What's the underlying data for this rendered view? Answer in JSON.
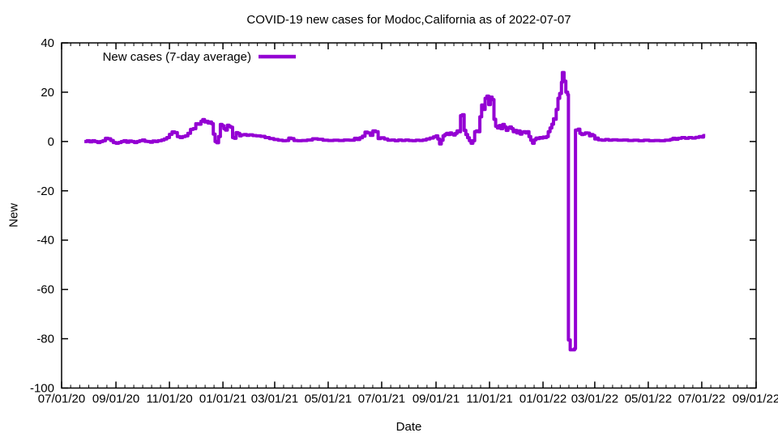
{
  "chart": {
    "title": "COVID-19 new cases for Modoc,California as of 2022-07-07",
    "x_axis_label": "Date",
    "y_axis_label": "New",
    "legend_label": "New cases (7-day average)"
  },
  "colors": {
    "line": "#9400d3",
    "text": "#000000",
    "border": "#000000",
    "background": "#ffffff"
  },
  "chart_data": {
    "type": "line",
    "line_style": "steps-post",
    "title": "COVID-19 new cases for Modoc,California as of 2022-07-07",
    "xlabel": "Date",
    "ylabel": "New",
    "grid": false,
    "legend_position": "top-left-inside",
    "ylim": [
      -100,
      40
    ],
    "y_ticks": [
      40,
      20,
      0,
      -20,
      -40,
      -60,
      -80,
      -100
    ],
    "x_start_date": "2020-07-01",
    "xlim_days": [
      0,
      792
    ],
    "x_tick_days": [
      0,
      62,
      123,
      184,
      243,
      304,
      365,
      427,
      488,
      549,
      608,
      669,
      730,
      792
    ],
    "x_tick_labels": [
      "07/01/20",
      "09/01/20",
      "11/01/20",
      "01/01/21",
      "03/01/21",
      "05/01/21",
      "07/01/21",
      "09/01/21",
      "11/01/21",
      "01/01/22",
      "03/01/22",
      "05/01/22",
      "07/01/22",
      "09/01/22"
    ],
    "x_minor_divisions": 6,
    "series": [
      {
        "name": "New cases (7-day average)",
        "color": "#9400d3",
        "points": [
          [
            26,
            0
          ],
          [
            29,
            0.3
          ],
          [
            32,
            -0.1
          ],
          [
            35,
            0.3
          ],
          [
            38,
            0
          ],
          [
            41,
            -0.4
          ],
          [
            44,
            0
          ],
          [
            47,
            0.3
          ],
          [
            50,
            1.3
          ],
          [
            53,
            1.1
          ],
          [
            56,
            0.4
          ],
          [
            59,
            -0.4
          ],
          [
            62,
            -0.7
          ],
          [
            65,
            -0.4
          ],
          [
            68,
            0
          ],
          [
            71,
            0.3
          ],
          [
            74,
            -0.3
          ],
          [
            77,
            0.2
          ],
          [
            80,
            0
          ],
          [
            83,
            -0.4
          ],
          [
            86,
            0
          ],
          [
            89,
            0.3
          ],
          [
            92,
            0.6
          ],
          [
            95,
            0.1
          ],
          [
            98,
            0
          ],
          [
            101,
            -0.3
          ],
          [
            104,
            0.2
          ],
          [
            107,
            0
          ],
          [
            110,
            0.3
          ],
          [
            114,
            0.6
          ],
          [
            117,
            1
          ],
          [
            120,
            1.6
          ],
          [
            123,
            2.9
          ],
          [
            126,
            3.9
          ],
          [
            129,
            3.6
          ],
          [
            132,
            2
          ],
          [
            135,
            1.6
          ],
          [
            138,
            2
          ],
          [
            141,
            2.3
          ],
          [
            144,
            3.3
          ],
          [
            147,
            4.9
          ],
          [
            150,
            5.2
          ],
          [
            153,
            7.2
          ],
          [
            156,
            7
          ],
          [
            159,
            8.2
          ],
          [
            161,
            8.9
          ],
          [
            163,
            7.9
          ],
          [
            165,
            8.2
          ],
          [
            167,
            7.5
          ],
          [
            169,
            7.9
          ],
          [
            171,
            7.2
          ],
          [
            173,
            3
          ],
          [
            175,
            0
          ],
          [
            177,
            -0.5
          ],
          [
            179,
            2
          ],
          [
            181,
            6.9
          ],
          [
            183,
            6.4
          ],
          [
            185,
            5.2
          ],
          [
            187,
            4.6
          ],
          [
            189,
            6.6
          ],
          [
            191,
            6.1
          ],
          [
            193,
            5.8
          ],
          [
            195,
            1.6
          ],
          [
            197,
            1.3
          ],
          [
            199,
            3.6
          ],
          [
            201,
            3.3
          ],
          [
            203,
            2.3
          ],
          [
            205,
            2.7
          ],
          [
            208,
            2.8
          ],
          [
            211,
            2.5
          ],
          [
            214,
            2.7
          ],
          [
            218,
            2.4
          ],
          [
            222,
            2.3
          ],
          [
            227,
            2.1
          ],
          [
            232,
            1.6
          ],
          [
            237,
            1.2
          ],
          [
            242,
            0.8
          ],
          [
            247,
            0.5
          ],
          [
            252,
            0.3
          ],
          [
            256,
            0.4
          ],
          [
            259,
            1.4
          ],
          [
            262,
            1.2
          ],
          [
            265,
            0.4
          ],
          [
            269,
            0.3
          ],
          [
            274,
            0.4
          ],
          [
            280,
            0.6
          ],
          [
            286,
            1.1
          ],
          [
            292,
            0.9
          ],
          [
            298,
            0.5
          ],
          [
            304,
            0.4
          ],
          [
            310,
            0.5
          ],
          [
            316,
            0.4
          ],
          [
            322,
            0.6
          ],
          [
            328,
            0.5
          ],
          [
            334,
            1.3
          ],
          [
            337,
            0.8
          ],
          [
            340,
            1.5
          ],
          [
            343,
            2.2
          ],
          [
            346,
            3.8
          ],
          [
            349,
            3.5
          ],
          [
            352,
            2.5
          ],
          [
            355,
            4.3
          ],
          [
            358,
            4
          ],
          [
            361,
            1.2
          ],
          [
            364,
            1.5
          ],
          [
            368,
            1
          ],
          [
            372,
            0.5
          ],
          [
            376,
            0.6
          ],
          [
            380,
            0.3
          ],
          [
            384,
            0.6
          ],
          [
            388,
            0.4
          ],
          [
            392,
            0.6
          ],
          [
            396,
            0.4
          ],
          [
            400,
            0.3
          ],
          [
            404,
            0.5
          ],
          [
            408,
            0.4
          ],
          [
            412,
            0.6
          ],
          [
            416,
            1
          ],
          [
            420,
            1.4
          ],
          [
            424,
            1.9
          ],
          [
            427,
            2.3
          ],
          [
            429,
            1
          ],
          [
            431,
            -1
          ],
          [
            433,
            0.5
          ],
          [
            435,
            2.3
          ],
          [
            437,
            2.8
          ],
          [
            439,
            3.3
          ],
          [
            441,
            2.8
          ],
          [
            443,
            3.5
          ],
          [
            445,
            3
          ],
          [
            447,
            2.6
          ],
          [
            449,
            3.3
          ],
          [
            451,
            4.3
          ],
          [
            453,
            4
          ],
          [
            455,
            10.5
          ],
          [
            457,
            10.9
          ],
          [
            459,
            4.5
          ],
          [
            461,
            2.8
          ],
          [
            463,
            1.5
          ],
          [
            465,
            0.3
          ],
          [
            467,
            -0.7
          ],
          [
            469,
            0.3
          ],
          [
            471,
            4
          ],
          [
            473,
            4.3
          ],
          [
            475,
            4
          ],
          [
            477,
            10
          ],
          [
            479,
            14.8
          ],
          [
            481,
            13
          ],
          [
            483,
            17.5
          ],
          [
            485,
            18.4
          ],
          [
            487,
            15
          ],
          [
            489,
            18
          ],
          [
            491,
            17
          ],
          [
            493,
            9
          ],
          [
            495,
            6.2
          ],
          [
            497,
            5.5
          ],
          [
            499,
            6.5
          ],
          [
            501,
            5.2
          ],
          [
            503,
            6.9
          ],
          [
            505,
            5.9
          ],
          [
            507,
            4.5
          ],
          [
            509,
            5.5
          ],
          [
            511,
            5.9
          ],
          [
            513,
            5.2
          ],
          [
            515,
            4
          ],
          [
            517,
            4.5
          ],
          [
            519,
            3.5
          ],
          [
            521,
            4.3
          ],
          [
            523,
            3
          ],
          [
            525,
            3.8
          ],
          [
            527,
            4
          ],
          [
            529,
            3.5
          ],
          [
            531,
            4
          ],
          [
            533,
            2
          ],
          [
            535,
            0.5
          ],
          [
            537,
            -0.7
          ],
          [
            539,
            0.7
          ],
          [
            541,
            1.4
          ],
          [
            543,
            1.2
          ],
          [
            545,
            1.6
          ],
          [
            547,
            1.4
          ],
          [
            549,
            1.8
          ],
          [
            551,
            1.6
          ],
          [
            553,
            2
          ],
          [
            555,
            4
          ],
          [
            557,
            5.5
          ],
          [
            559,
            7
          ],
          [
            561,
            9.2
          ],
          [
            563,
            9
          ],
          [
            564,
            13
          ],
          [
            566,
            17.5
          ],
          [
            568,
            19.5
          ],
          [
            570,
            24
          ],
          [
            571,
            28
          ],
          [
            573,
            24.5
          ],
          [
            575,
            20
          ],
          [
            577,
            19
          ],
          [
            578,
            -80.5
          ],
          [
            580,
            -84.5
          ],
          [
            585,
            -84
          ],
          [
            586,
            4.6
          ],
          [
            589,
            5
          ],
          [
            591,
            3.3
          ],
          [
            593,
            2.8
          ],
          [
            595,
            3
          ],
          [
            597,
            3.5
          ],
          [
            600,
            3.4
          ],
          [
            602,
            2.3
          ],
          [
            604,
            2.8
          ],
          [
            606,
            2.4
          ],
          [
            608,
            1
          ],
          [
            610,
            1.4
          ],
          [
            612,
            0.7
          ],
          [
            616,
            0.5
          ],
          [
            620,
            0.8
          ],
          [
            624,
            0.5
          ],
          [
            628,
            0.7
          ],
          [
            634,
            0.5
          ],
          [
            640,
            0.6
          ],
          [
            646,
            0.4
          ],
          [
            652,
            0.5
          ],
          [
            658,
            0.3
          ],
          [
            664,
            0.5
          ],
          [
            670,
            0.3
          ],
          [
            676,
            0.4
          ],
          [
            682,
            0.3
          ],
          [
            688,
            0.5
          ],
          [
            694,
            0.8
          ],
          [
            697,
            1.3
          ],
          [
            700,
            0.9
          ],
          [
            703,
            1.3
          ],
          [
            707,
            1.6
          ],
          [
            711,
            1.3
          ],
          [
            715,
            1.6
          ],
          [
            719,
            1.4
          ],
          [
            723,
            1.7
          ],
          [
            727,
            2
          ],
          [
            730,
            1.8
          ],
          [
            732,
            2.4
          ],
          [
            734,
            2.4
          ]
        ]
      }
    ]
  }
}
